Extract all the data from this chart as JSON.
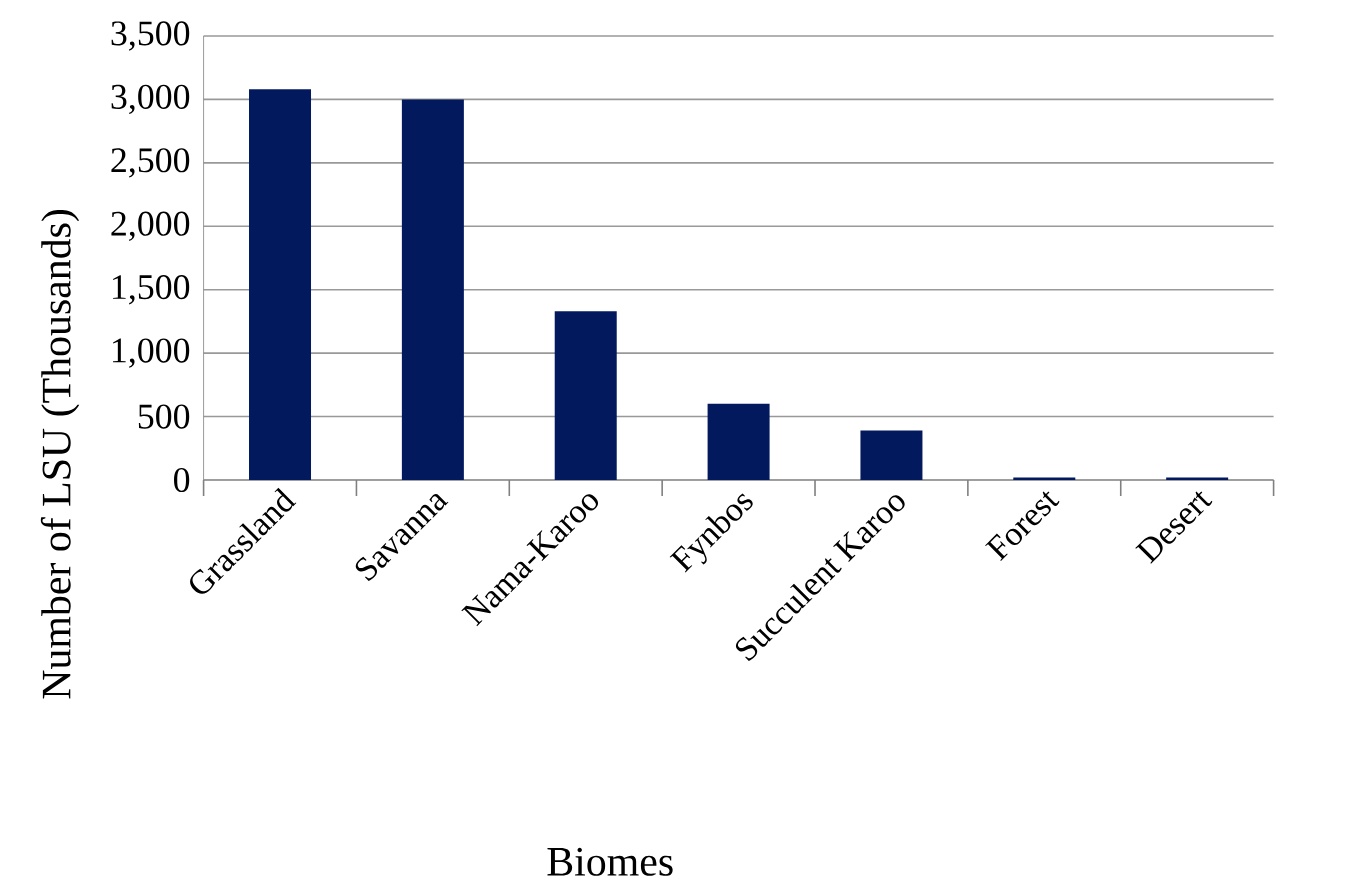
{
  "chart_data": {
    "type": "bar",
    "xlabel": "Biomes",
    "ylabel": "Number of LSU (Thousands)",
    "categories": [
      "Grassland",
      "Savanna",
      "Nama-Karoo",
      "Fynbos",
      "Succulent Karoo",
      "Forest",
      "Desert"
    ],
    "values": [
      3080,
      3000,
      1330,
      600,
      390,
      20,
      20
    ],
    "color": "#03195e",
    "ylim": [
      0,
      3500
    ],
    "yticks": [
      {
        "value": 0,
        "label": "0"
      },
      {
        "value": 500,
        "label": "500"
      },
      {
        "value": 1000,
        "label": "1,000"
      },
      {
        "value": 1500,
        "label": "1,500"
      },
      {
        "value": 2000,
        "label": "2,000"
      },
      {
        "value": 2500,
        "label": "2,500"
      },
      {
        "value": 3000,
        "label": "3,000"
      },
      {
        "value": 3500,
        "label": "3,500"
      }
    ],
    "grid": "y"
  }
}
